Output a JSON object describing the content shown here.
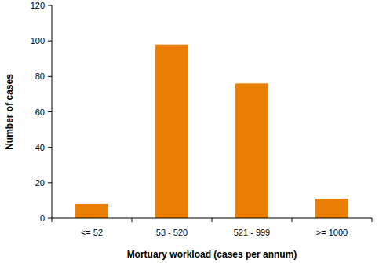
{
  "chart_data": {
    "type": "bar",
    "x_label": "Mortuary workload (cases per annum)",
    "y_label": "Number of cases",
    "categories": [
      "<= 52",
      "53 - 520",
      "521 - 999",
      ">= 1000"
    ],
    "values": [
      8,
      98,
      76,
      11
    ],
    "color": "#e87e04",
    "ylim": [
      0,
      120
    ],
    "yticks": [
      0,
      20,
      40,
      60,
      80,
      100,
      120
    ],
    "grid": false
  }
}
